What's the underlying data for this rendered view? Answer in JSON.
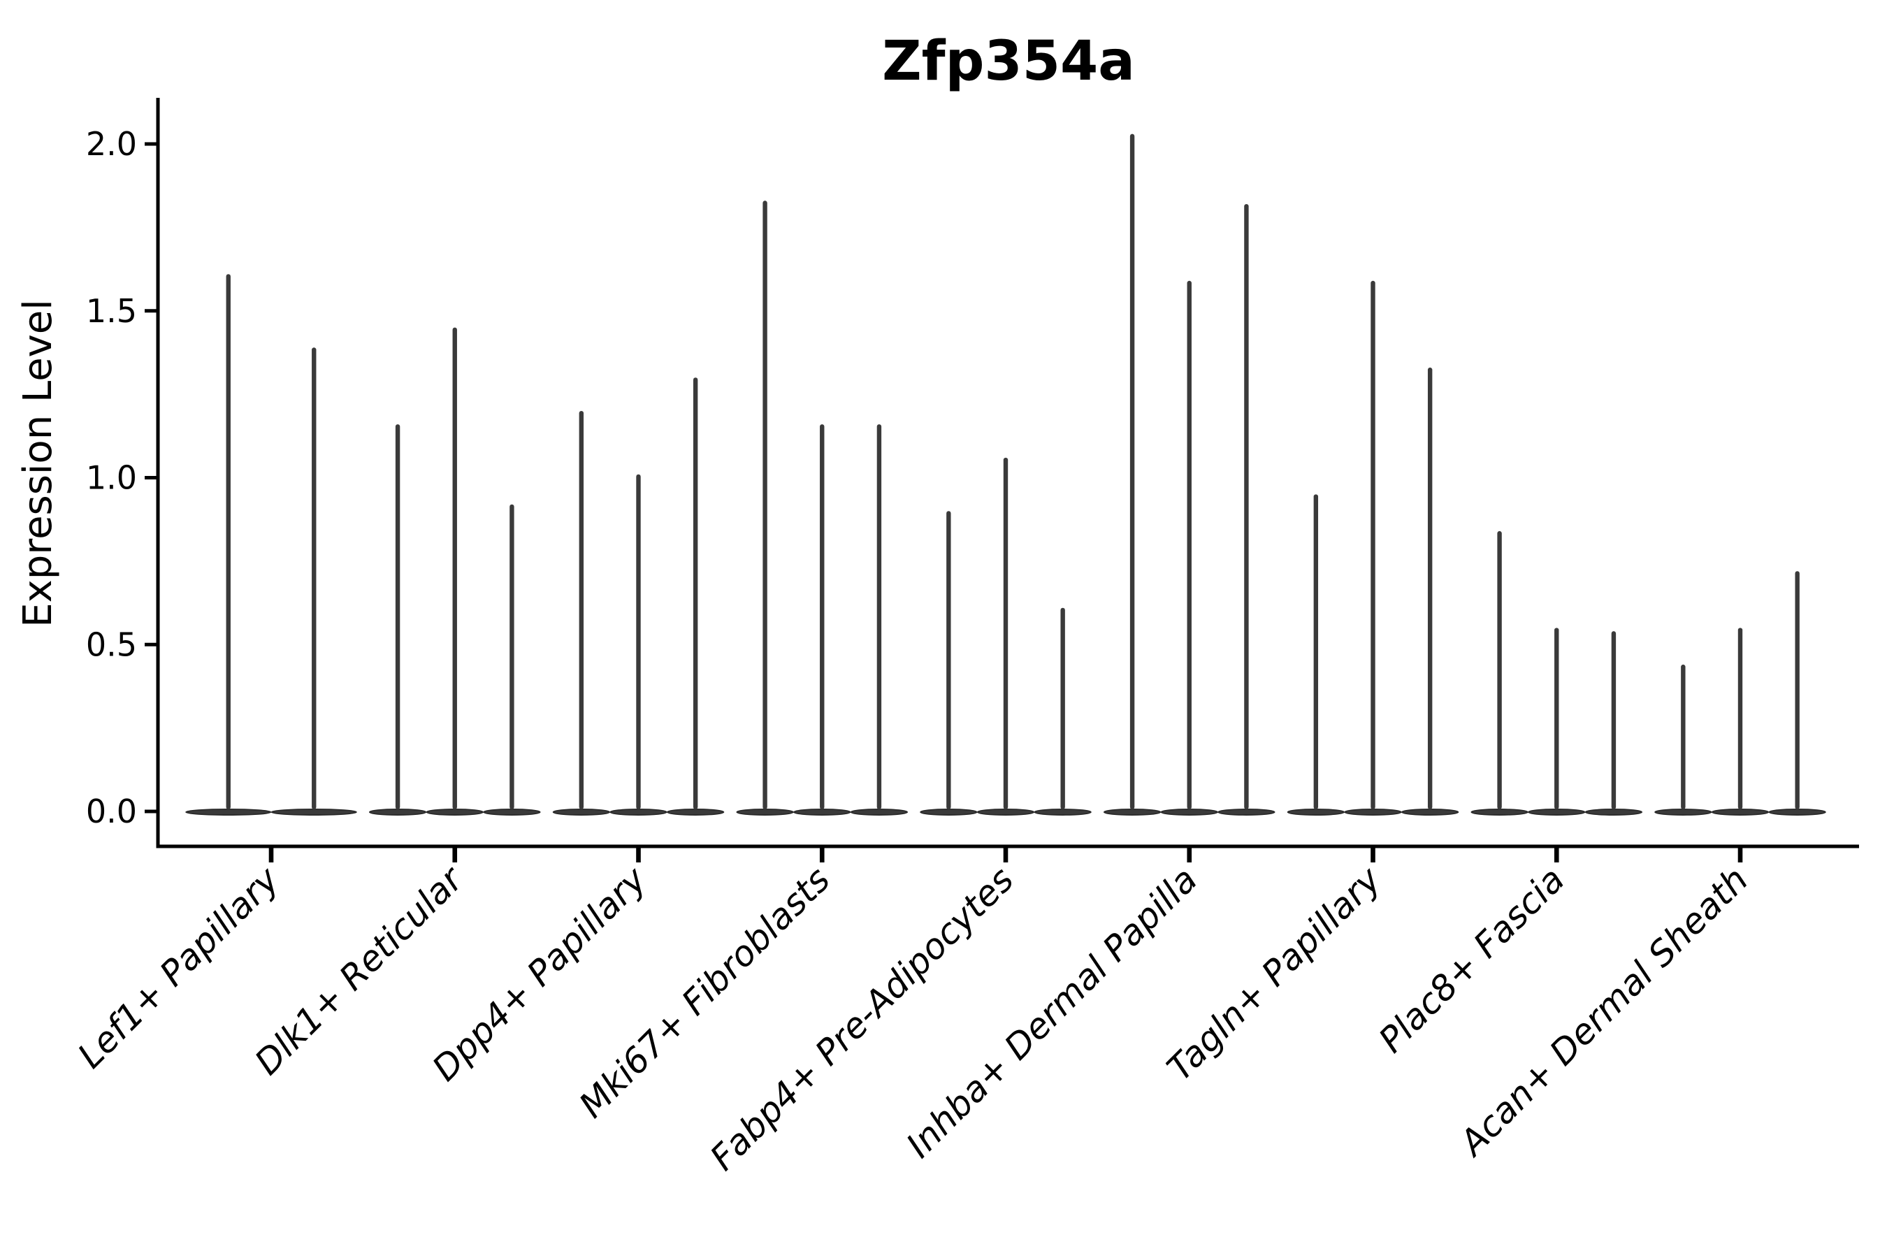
{
  "title": "Zfp354a",
  "ylabel": "Expression Level",
  "chart_data": {
    "type": "violin",
    "title": "Zfp354a",
    "xlabel": "",
    "ylabel": "Expression Level",
    "ylim": [
      -0.11,
      2.14
    ],
    "yticks": [
      "0.0",
      "0.5",
      "1.0",
      "1.5",
      "2.0"
    ],
    "ytick_values": [
      0.0,
      0.5,
      1.0,
      1.5,
      2.0
    ],
    "grid": false,
    "legend": false,
    "background": "#ffffff",
    "colors": {
      "violin_fill": "#3a3a3a",
      "violin_edge": "#262626",
      "axis": "#000000",
      "text": "#000000"
    },
    "categories": [
      "Lef1+ Papillary",
      "Dlk1+ Reticular",
      "Dpp4+ Papillary",
      "Mki67+ Fibroblasts",
      "Fabp4+ Pre-Adipocytes",
      "Inhba+ Dermal Papilla",
      "Tagln+ Papillary",
      "Plac8+ Fascia",
      "Acan+ Dermal Sheath"
    ],
    "series": [
      {
        "category": "Lef1+ Papillary",
        "n_violins": 2,
        "violin_min": 0.0,
        "violin_max_values": [
          1.61,
          1.39
        ]
      },
      {
        "category": "Dlk1+ Reticular",
        "n_violins": 3,
        "violin_min": 0.0,
        "violin_max_values": [
          1.16,
          1.45,
          0.92
        ]
      },
      {
        "category": "Dpp4+ Papillary",
        "n_violins": 3,
        "violin_min": 0.0,
        "violin_max_values": [
          1.2,
          1.01,
          1.3
        ]
      },
      {
        "category": "Mki67+ Fibroblasts",
        "n_violins": 3,
        "violin_min": 0.0,
        "violin_max_values": [
          1.83,
          1.16,
          1.16
        ]
      },
      {
        "category": "Fabp4+ Pre-Adipocytes",
        "n_violins": 3,
        "violin_min": 0.0,
        "violin_max_values": [
          0.9,
          1.06,
          0.61
        ]
      },
      {
        "category": "Inhba+ Dermal Papilla",
        "n_violins": 3,
        "violin_min": 0.0,
        "violin_max_values": [
          2.03,
          1.59,
          1.82
        ]
      },
      {
        "category": "Tagln+ Papillary",
        "n_violins": 3,
        "violin_min": 0.0,
        "violin_max_values": [
          0.95,
          1.59,
          1.33
        ]
      },
      {
        "category": "Plac8+ Fascia",
        "n_violins": 3,
        "violin_min": 0.0,
        "violin_max_values": [
          0.84,
          0.55,
          0.54
        ]
      },
      {
        "category": "Acan+ Dermal Sheath",
        "n_violins": 3,
        "violin_min": 0.0,
        "violin_max_values": [
          0.44,
          0.55,
          0.72
        ]
      }
    ]
  }
}
